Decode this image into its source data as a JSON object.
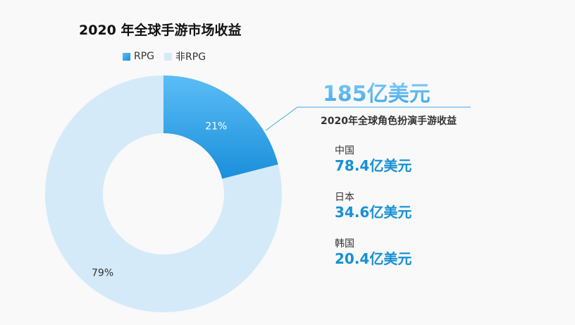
{
  "title": "2020 年全球手游市场收益",
  "legend": {
    "rpg": "RPG",
    "non_rpg": "非RPG"
  },
  "colors": {
    "rpg_light": "#5bbdf5",
    "rpg_dark": "#1a8fdb",
    "non_rpg": "#d4eaf9",
    "accent": "#1590d6"
  },
  "chart_data": {
    "type": "pie",
    "style": "donut",
    "title": "2020 年全球手游市场收益",
    "legend_position": "top-left",
    "categories": [
      "RPG",
      "非RPG"
    ],
    "values": [
      21,
      79
    ],
    "labels": [
      "21%",
      "79%"
    ]
  },
  "callout": {
    "big_number": "185亿美元",
    "subtitle": "2020年全球角色扮演手游收益"
  },
  "regions": [
    {
      "name": "中国",
      "value": "78.4亿美元"
    },
    {
      "name": "日本",
      "value": "34.6亿美元"
    },
    {
      "name": "韩国",
      "value": "20.4亿美元"
    }
  ]
}
